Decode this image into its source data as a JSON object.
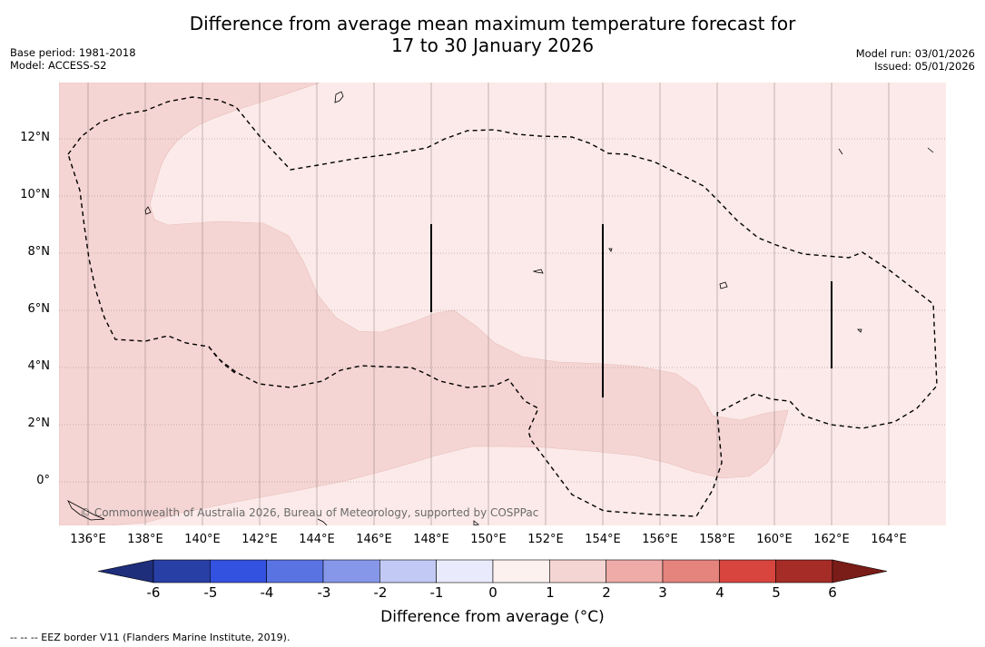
{
  "title": {
    "line1": "Difference from average mean maximum temperature forecast for",
    "line2": "17 to 30 January 2026"
  },
  "meta": {
    "base_period": "Base period: 1981-2018",
    "model": "Model: ACCESS-S2",
    "model_run": "Model run: 03/01/2026",
    "issued": "Issued: 05/01/2026"
  },
  "map": {
    "lat_labels": [
      "12°N",
      "10°N",
      "8°N",
      "6°N",
      "4°N",
      "2°N",
      "0°"
    ],
    "lon_labels": [
      "136°E",
      "138°E",
      "140°E",
      "142°E",
      "144°E",
      "146°E",
      "148°E",
      "150°E",
      "152°E",
      "154°E",
      "156°E",
      "158°E",
      "160°E",
      "162°E",
      "164°E"
    ],
    "copyright": "© Commonwealth of Australia 2026, Bureau of Meteorology, supported by COSPPac",
    "anomaly_regions": [
      {
        "category": "0 to 1 °C",
        "color": "#fbeae9"
      },
      {
        "category": "1 to 2 °C",
        "color": "#f5d5d3"
      }
    ]
  },
  "colorbar": {
    "ticks": [
      "-6",
      "-5",
      "-4",
      "-3",
      "-2",
      "-1",
      "0",
      "1",
      "2",
      "3",
      "4",
      "5",
      "6"
    ],
    "colors": [
      "#283fa6",
      "#3352e0",
      "#5a73e3",
      "#8697ea",
      "#c1c9f4",
      "#e9ebfc",
      "#fdf1f0",
      "#f5d5d3",
      "#eeaba7",
      "#e5837d",
      "#d8453e",
      "#a52c27"
    ],
    "under_color": "#1f2e7a",
    "over_color": "#7a1c18",
    "label": "Difference from average (°C)"
  },
  "footer": "--  --  -- EEZ border V11 (Flanders Marine Institute, 2019)."
}
